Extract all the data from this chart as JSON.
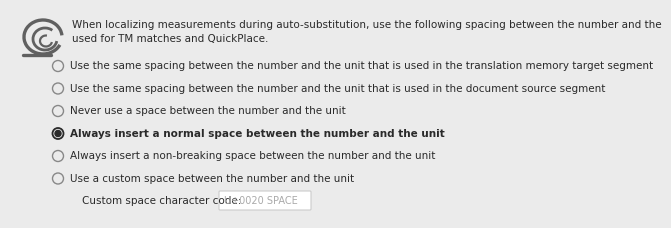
{
  "bg_color": "#ebebeb",
  "header_line1": "When localizing measurements during auto-substitution, use the following spacing between the number and the",
  "header_line2": "used for TM matches and QuickPlace.",
  "tm_color": "#1a7ac4",
  "header_fontsize": 7.5,
  "options": [
    {
      "text": "Use the same spacing between the number and the unit that is used in the translation memory target segment",
      "selected": false,
      "bold": false
    },
    {
      "text": "Use the same spacing between the number and the unit that is used in the document source segment",
      "selected": false,
      "bold": false
    },
    {
      "text": "Never use a space between the number and the unit",
      "selected": false,
      "bold": false
    },
    {
      "text": "Always insert a normal space between the number and the unit",
      "selected": true,
      "bold": true
    },
    {
      "text": "Always insert a non-breaking space between the number and the unit",
      "selected": false,
      "bold": false
    },
    {
      "text": "Use a custom space between the number and the unit",
      "selected": false,
      "bold": false
    }
  ],
  "custom_label": "Custom space character code:",
  "custom_value": "U+0020 SPACE",
  "text_color": "#2a2a2a",
  "radio_unsel_color": "#888888",
  "radio_sel_color": "#2a2a2a",
  "icon_color": "#606060",
  "option_fontsize": 7.5,
  "custom_fontsize": 7.5,
  "placeholder_color": "#aaaaaa",
  "inputbox_bg": "#ffffff",
  "inputbox_border": "#cccccc"
}
